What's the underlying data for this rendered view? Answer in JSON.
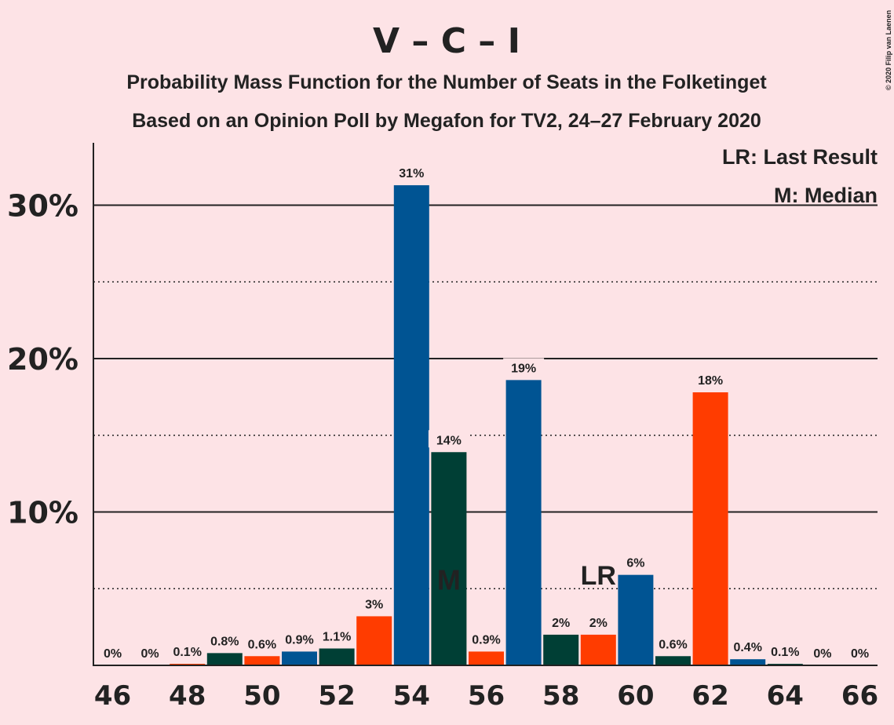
{
  "chart_data": {
    "type": "bar",
    "title": "V – C – I",
    "subtitle_line1": "Probability Mass Function for the Number of Seats in the Folketinget",
    "subtitle_line2": "Based on an Opinion Poll by Megafon for TV2, 24–27 February 2020",
    "copyright": "© 2020 Filip van Laenen",
    "legend_lr": "LR: Last Result",
    "legend_m": "M: Median",
    "median_marker": "M",
    "median_seat": 55,
    "last_result_marker": "LR",
    "last_result_seat": 59,
    "ylim": [
      0,
      34
    ],
    "y_ticks": [
      {
        "value": 10,
        "label": "10%"
      },
      {
        "value": 20,
        "label": "20%"
      },
      {
        "value": 30,
        "label": "30%"
      }
    ],
    "x_tick_labels": [
      "46",
      "48",
      "50",
      "52",
      "54",
      "56",
      "58",
      "60",
      "62",
      "64",
      "66"
    ],
    "colors": {
      "blue": "#005493",
      "green": "#003f35",
      "red": "#ff3c00",
      "background": "#fde3e6"
    },
    "bars": [
      {
        "seats": 46,
        "value": 0,
        "label": "0%",
        "color": "blue"
      },
      {
        "seats": 47,
        "value": 0,
        "label": "0%",
        "color": "green"
      },
      {
        "seats": 48,
        "value": 0.1,
        "label": "0.1%",
        "color": "red"
      },
      {
        "seats": 49,
        "value": 0.8,
        "label": "0.8%",
        "color": "green"
      },
      {
        "seats": 50,
        "value": 0.6,
        "label": "0.6%",
        "color": "red"
      },
      {
        "seats": 51,
        "value": 0.9,
        "label": "0.9%",
        "color": "blue"
      },
      {
        "seats": 52,
        "value": 1.1,
        "label": "1.1%",
        "color": "green"
      },
      {
        "seats": 53,
        "value": 3.2,
        "label": "3%",
        "color": "red"
      },
      {
        "seats": 54,
        "value": 31.3,
        "label": "31%",
        "color": "blue"
      },
      {
        "seats": 55,
        "value": 13.9,
        "label": "14%",
        "color": "green"
      },
      {
        "seats": 56,
        "value": 0.9,
        "label": "0.9%",
        "color": "red"
      },
      {
        "seats": 57,
        "value": 18.6,
        "label": "19%",
        "color": "blue"
      },
      {
        "seats": 58,
        "value": 2.0,
        "label": "2%",
        "color": "green"
      },
      {
        "seats": 59,
        "value": 2.0,
        "label": "2%",
        "color": "red"
      },
      {
        "seats": 60,
        "value": 5.9,
        "label": "6%",
        "color": "blue"
      },
      {
        "seats": 61,
        "value": 0.6,
        "label": "0.6%",
        "color": "green"
      },
      {
        "seats": 62,
        "value": 17.8,
        "label": "18%",
        "color": "red"
      },
      {
        "seats": 63,
        "value": 0.4,
        "label": "0.4%",
        "color": "blue"
      },
      {
        "seats": 64,
        "value": 0.1,
        "label": "0.1%",
        "color": "green"
      },
      {
        "seats": 65,
        "value": 0,
        "label": "0%",
        "color": "red"
      },
      {
        "seats": 66,
        "value": 0,
        "label": "0%",
        "color": "blue"
      }
    ]
  }
}
